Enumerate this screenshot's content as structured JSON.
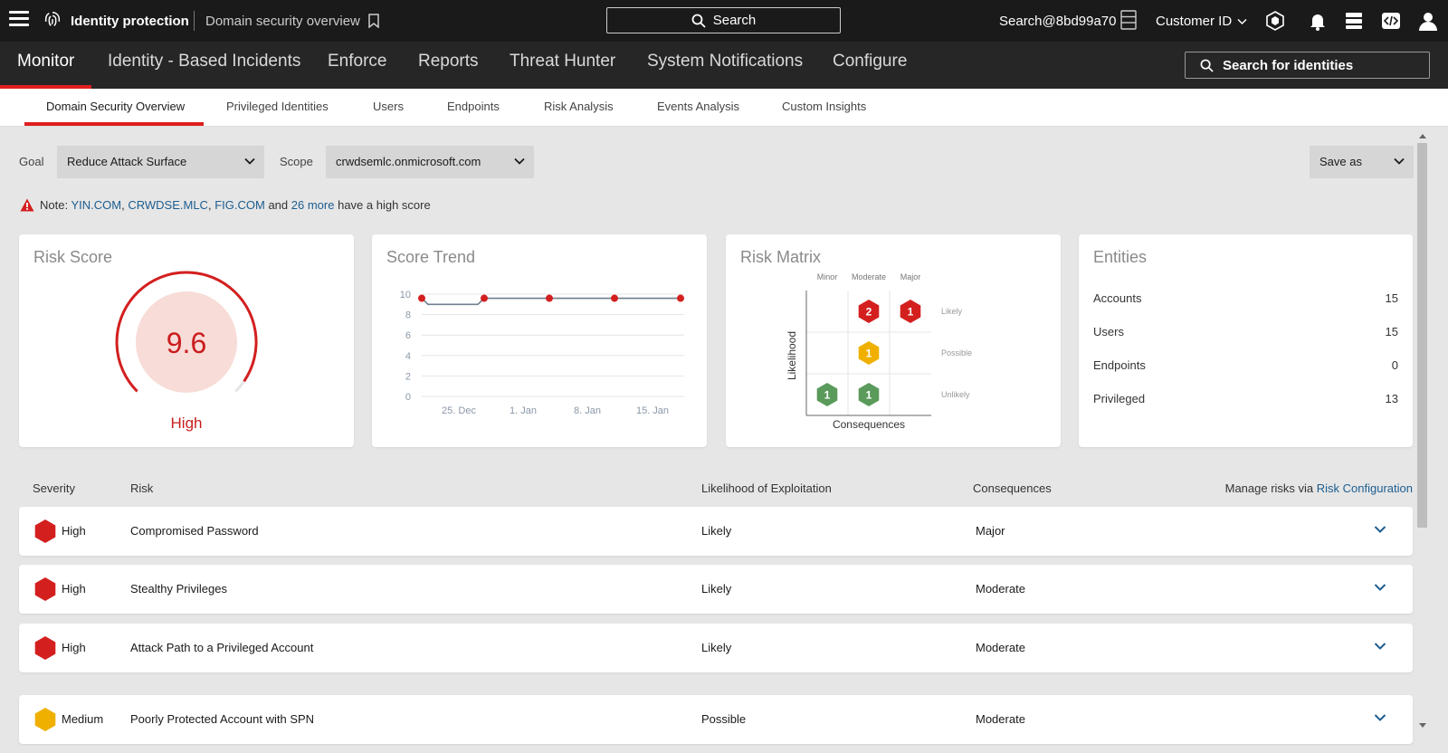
{
  "topbar": {
    "app_title": "Identity protection",
    "page_title": "Domain security overview",
    "search_label": "Search",
    "user": "Search@8bd99a70",
    "customer_id_label": "Customer ID"
  },
  "main_nav": {
    "items": [
      "Monitor",
      "Identity - Based Incidents",
      "Enforce",
      "Reports",
      "Threat Hunter",
      "System Notifications",
      "Configure"
    ],
    "active": "Monitor",
    "identity_search_label": "Search for identities"
  },
  "sub_nav": {
    "items": [
      "Domain Security Overview",
      "Privileged Identities",
      "Users",
      "Endpoints",
      "Risk Analysis",
      "Events Analysis",
      "Custom Insights"
    ],
    "active": "Domain Security Overview"
  },
  "filters": {
    "goal_label": "Goal",
    "goal_value": "Reduce Attack Surface",
    "scope_label": "Scope",
    "scope_value": "crwdsemlc.onmicrosoft.com",
    "save_as_label": "Save as"
  },
  "note": {
    "prefix": "Note:",
    "domain_1": "YIN.COM",
    "comma_1": ",",
    "domain_2": "CRWDSE.MLC",
    "comma_2": ",",
    "domain_3": "FIG.COM",
    "and": "and",
    "more_link": "26 more",
    "suffix": "have a high score"
  },
  "risk_score": {
    "title": "Risk Score",
    "value": "9.6",
    "level": "High",
    "gauge_fraction": 0.96
  },
  "score_trend": {
    "title": "Score Trend"
  },
  "chart_data": {
    "type": "line",
    "title": "Score Trend",
    "x_ticks": [
      "25. Dec",
      "1. Jan",
      "8. Jan",
      "15. Jan"
    ],
    "y_ticks": [
      "10",
      "8",
      "6",
      "4",
      "2",
      "0"
    ],
    "ylim": [
      0,
      10
    ],
    "series": [
      {
        "values": [
          9.6,
          9.0,
          9.0,
          9.6,
          9.6,
          9.6,
          9.6
        ],
        "markers_at": [
          0,
          3,
          4,
          5,
          6
        ]
      }
    ],
    "grid": true
  },
  "risk_matrix": {
    "title": "Risk Matrix",
    "columns": [
      "Minor",
      "Moderate",
      "Major"
    ],
    "rows": [
      "Likely",
      "Possible",
      "Unlikely"
    ],
    "y_label": "Likelihood",
    "x_label": "Consequences",
    "cells": [
      {
        "row": "Likely",
        "col": "Moderate",
        "count": "2",
        "color": "#d41f1f"
      },
      {
        "row": "Likely",
        "col": "Major",
        "count": "1",
        "color": "#d41f1f"
      },
      {
        "row": "Possible",
        "col": "Moderate",
        "count": "1",
        "color": "#f0b000"
      },
      {
        "row": "Unlikely",
        "col": "Minor",
        "count": "1",
        "color": "#5a9a5a"
      },
      {
        "row": "Unlikely",
        "col": "Moderate",
        "count": "1",
        "color": "#5a9a5a"
      }
    ]
  },
  "entities": {
    "title": "Entities",
    "items": [
      {
        "label": "Accounts",
        "value": "15"
      },
      {
        "label": "Users",
        "value": "15"
      },
      {
        "label": "Endpoints",
        "value": "0"
      },
      {
        "label": "Privileged",
        "value": "13"
      }
    ]
  },
  "risk_table": {
    "headers": {
      "severity": "Severity",
      "risk": "Risk",
      "likelihood": "Likelihood of Exploitation",
      "consequences": "Consequences",
      "manage_prefix": "Manage risks via",
      "manage_link": "Risk Configuration"
    },
    "rows": [
      {
        "severity": "High",
        "risk": "Compromised Password",
        "likelihood": "Likely",
        "consequences": "Major",
        "color": "#d41f1f"
      },
      {
        "severity": "High",
        "risk": "Stealthy Privileges",
        "likelihood": "Likely",
        "consequences": "Moderate",
        "color": "#d41f1f"
      },
      {
        "severity": "High",
        "risk": "Attack Path to a Privileged Account",
        "likelihood": "Likely",
        "consequences": "Moderate",
        "color": "#d41f1f"
      },
      {
        "severity": "Medium",
        "risk": "Poorly Protected Account with SPN",
        "likelihood": "Possible",
        "consequences": "Moderate",
        "color": "#f0b000"
      }
    ]
  },
  "colors": {
    "accent": "#e01e1e",
    "link": "#1d5d8f",
    "high": "#d41f1f",
    "medium": "#f0b000",
    "low": "#5a9a5a"
  }
}
